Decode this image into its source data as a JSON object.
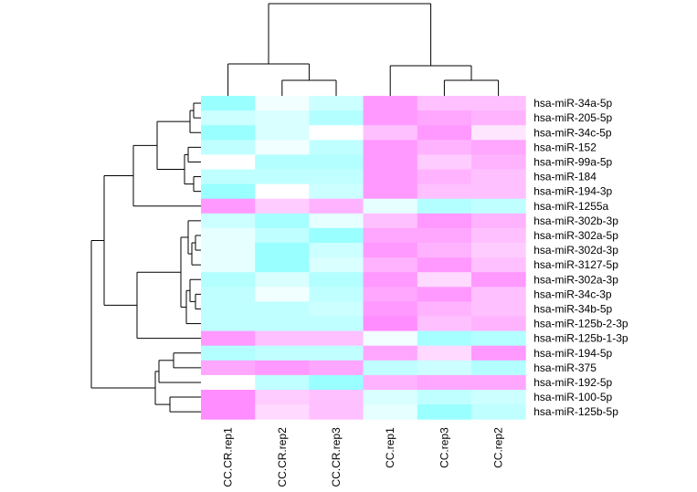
{
  "chart_data": {
    "type": "heatmap",
    "title": "",
    "xlabel": "",
    "ylabel": "",
    "columns": [
      "CC.CR.rep1",
      "CC.CR.rep2",
      "CC.CR.rep3",
      "CC.rep1",
      "CC.rep3",
      "CC.rep2"
    ],
    "rows": [
      "hsa-miR-34a-5p",
      "hsa-miR-205-5p",
      "hsa-miR-34c-5p",
      "hsa-miR-152",
      "hsa-miR-99a-5p",
      "hsa-miR-184",
      "hsa-miR-194-3p",
      "hsa-miR-1255a",
      "hsa-miR-302b-3p",
      "hsa-miR-302a-5p",
      "hsa-miR-302d-3p",
      "hsa-miR-3127-5p",
      "hsa-miR-302a-3p",
      "hsa-miR-34c-3p",
      "hsa-miR-34b-5p",
      "hsa-miR-125b-2-3p",
      "hsa-miR-125b-1-3p",
      "hsa-miR-194-5p",
      "hsa-miR-375",
      "hsa-miR-192-5p",
      "hsa-miR-100-5p",
      "hsa-miR-125b-5p"
    ],
    "values": [
      [
        -0.8,
        -0.1,
        -0.4,
        0.8,
        0.5,
        0.5
      ],
      [
        -0.4,
        -0.3,
        -0.6,
        0.8,
        0.7,
        0.6
      ],
      [
        -0.8,
        -0.3,
        0.0,
        0.5,
        0.8,
        0.2
      ],
      [
        -0.5,
        -0.1,
        -0.5,
        0.8,
        0.6,
        0.7
      ],
      [
        0.0,
        -0.6,
        -0.6,
        0.8,
        0.4,
        0.6
      ],
      [
        -0.5,
        -0.5,
        -0.5,
        0.8,
        0.6,
        0.5
      ],
      [
        -0.8,
        0.0,
        -0.4,
        0.8,
        0.5,
        0.5
      ],
      [
        0.8,
        0.4,
        0.6,
        -0.2,
        -0.6,
        -0.5
      ],
      [
        -0.4,
        -0.7,
        -0.2,
        0.5,
        0.8,
        0.6
      ],
      [
        -0.2,
        -0.5,
        -0.8,
        0.7,
        0.7,
        0.5
      ],
      [
        -0.2,
        -0.8,
        -0.4,
        0.8,
        0.6,
        0.4
      ],
      [
        -0.2,
        -0.8,
        -0.3,
        0.6,
        0.8,
        0.5
      ],
      [
        -0.6,
        -0.3,
        -0.6,
        0.8,
        0.3,
        0.8
      ],
      [
        -0.5,
        -0.1,
        -0.5,
        0.7,
        0.8,
        0.5
      ],
      [
        -0.5,
        -0.5,
        -0.4,
        0.8,
        0.6,
        0.5
      ],
      [
        -0.5,
        -0.5,
        -0.5,
        0.9,
        0.5,
        0.6
      ],
      [
        0.8,
        0.5,
        0.5,
        -0.1,
        -0.7,
        -0.6
      ],
      [
        -0.6,
        -0.5,
        -0.5,
        0.7,
        0.3,
        0.8
      ],
      [
        0.7,
        0.8,
        0.7,
        -0.5,
        -0.4,
        -0.6
      ],
      [
        0.0,
        -0.5,
        -0.8,
        0.6,
        0.7,
        0.7
      ],
      [
        0.9,
        0.4,
        0.5,
        -0.3,
        -0.5,
        -0.4
      ],
      [
        0.9,
        0.3,
        0.5,
        -0.2,
        -0.8,
        -0.5
      ]
    ],
    "color_scale": {
      "low": "#80ffff",
      "mid": "#ffffff",
      "high": "#ff80ff"
    },
    "value_range": [
      -1,
      1
    ],
    "legend": "none",
    "grid": false
  },
  "dendrograms": {
    "rows": [
      [
        [
          0,
          2
        ],
        [
          -1,
          1
        ],
        -1,
        0.1
      ],
      [
        -1,
        -1,
        3,
        0.06
      ],
      [
        -2,
        -3,
        1,
        0.16
      ],
      [
        [
          3,
          4
        ],
        [
          5,
          6
        ],
        -1,
        0.04
      ],
      [
        -1,
        -1,
        -1,
        0.08
      ],
      [
        -5,
        -2,
        -1,
        0.18
      ],
      [
        -6,
        -4,
        7,
        0.26
      ],
      [
        [
          8,
          9
        ],
        -1,
        10,
        0.03
      ],
      [
        -1,
        -1,
        -1,
        0.05
      ],
      [
        11,
        12,
        -1,
        0.04
      ],
      [
        -3,
        -4,
        -1,
        0.07
      ],
      [
        -1,
        13,
        14,
        0.06
      ],
      [
        -1,
        -1,
        15,
        0.1
      ],
      [
        -7,
        -6,
        -1,
        0.28
      ],
      [
        16,
        17,
        -1,
        0.2
      ],
      [
        18,
        -1,
        19,
        0.1
      ],
      [
        20,
        21,
        -1,
        0.12
      ],
      [
        -1,
        -2,
        -3,
        0.2
      ],
      [
        -7,
        -1,
        -1,
        0.5
      ]
    ],
    "cols": []
  }
}
